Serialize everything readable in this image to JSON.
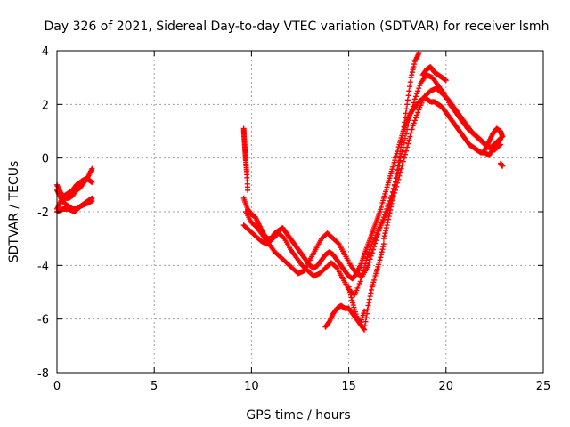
{
  "chart_data": {
    "type": "scatter",
    "title": "Day 326 of 2021, Sidereal Day-to-day VTEC variation (SDTVAR) for receiver lsmh",
    "xlabel": "GPS time / hours",
    "ylabel": "SDTVAR / TECUs",
    "xlim": [
      0,
      25
    ],
    "ylim": [
      -8,
      4
    ],
    "xticks": [
      0,
      5,
      10,
      15,
      20,
      25
    ],
    "yticks": [
      -8,
      -6,
      -4,
      -2,
      0,
      2,
      4
    ],
    "grid": true,
    "marker": "+",
    "series": [
      {
        "name": "SDTVAR",
        "color": "#ff0000",
        "segments": [
          {
            "x": [
              0.0,
              0.2,
              0.4,
              0.6,
              0.8,
              1.0,
              1.2,
              1.4,
              1.6,
              1.8
            ],
            "y": [
              -1.0,
              -1.3,
              -1.5,
              -1.5,
              -1.4,
              -1.2,
              -1.1,
              -0.9,
              -0.7,
              -0.4
            ]
          },
          {
            "x": [
              0.0,
              0.2,
              0.4,
              0.6,
              0.8,
              1.0,
              1.2,
              1.4,
              1.6,
              1.8
            ],
            "y": [
              -1.9,
              -1.6,
              -1.4,
              -1.3,
              -1.2,
              -1.0,
              -0.9,
              -0.8,
              -0.8,
              -0.9
            ]
          },
          {
            "x": [
              0.0,
              0.2,
              0.4,
              0.6,
              0.8,
              1.0,
              1.2,
              1.4,
              1.6,
              1.8
            ],
            "y": [
              -1.2,
              -1.5,
              -1.7,
              -1.8,
              -1.9,
              -1.9,
              -1.8,
              -1.7,
              -1.6,
              -1.5
            ]
          },
          {
            "x": [
              0.0,
              0.3,
              0.6,
              0.9,
              1.2,
              1.5,
              1.8
            ],
            "y": [
              -2.0,
              -1.9,
              -1.9,
              -2.0,
              -1.8,
              -1.7,
              -1.6
            ]
          },
          {
            "x": [
              9.6,
              9.62,
              9.65,
              9.68,
              9.7,
              9.75,
              9.8
            ],
            "y": [
              1.1,
              0.8,
              0.5,
              0.2,
              -0.1,
              -0.5,
              -1.2
            ]
          },
          {
            "x": [
              9.6,
              9.8,
              10.0,
              10.2,
              10.4,
              10.6,
              10.8,
              11.0,
              11.2,
              11.4,
              11.6,
              11.8,
              12.0,
              12.2,
              12.4,
              12.6,
              12.8,
              13.0,
              13.2,
              13.4,
              13.6,
              13.8,
              14.0,
              14.2,
              14.4,
              14.6,
              14.8,
              15.0,
              15.2,
              15.4,
              15.6,
              15.8,
              16.0,
              16.2,
              16.4,
              16.6,
              16.8,
              17.0,
              17.2,
              17.4,
              17.6,
              17.8,
              18.0,
              18.2,
              18.4,
              18.6,
              18.8,
              19.0,
              19.2,
              19.4,
              19.6,
              19.8,
              20.0,
              20.2,
              20.4,
              20.6,
              20.8,
              21.0,
              21.2,
              21.4,
              21.6,
              21.8,
              22.0,
              22.2,
              22.4,
              22.6,
              22.8
            ],
            "y": [
              -1.5,
              -1.9,
              -2.1,
              -2.2,
              -2.5,
              -2.8,
              -3.0,
              -3.0,
              -2.8,
              -2.7,
              -2.6,
              -2.8,
              -3.0,
              -3.2,
              -3.4,
              -3.6,
              -3.8,
              -4.0,
              -4.1,
              -4.0,
              -3.8,
              -3.6,
              -3.5,
              -3.6,
              -3.8,
              -4.0,
              -4.2,
              -4.4,
              -4.5,
              -4.3,
              -4.0,
              -3.6,
              -3.2,
              -2.8,
              -2.4,
              -2.0,
              -1.5,
              -1.0,
              -0.5,
              0.0,
              0.5,
              1.0,
              1.4,
              1.7,
              1.9,
              2.1,
              2.2,
              2.2,
              2.1,
              2.1,
              2.0,
              1.9,
              1.7,
              1.5,
              1.3,
              1.1,
              0.9,
              0.7,
              0.5,
              0.4,
              0.3,
              0.2,
              0.2,
              0.1,
              0.3,
              0.5,
              0.7
            ]
          },
          {
            "x": [
              9.6,
              9.9,
              10.2,
              10.5,
              10.8,
              11.1,
              11.4,
              11.7,
              12.0,
              12.3,
              12.6,
              12.9,
              13.2,
              13.5,
              13.8,
              14.1,
              14.4,
              14.7,
              15.0,
              15.3,
              15.6,
              15.9,
              16.2,
              16.5,
              16.8,
              17.1,
              17.4,
              17.7,
              18.0,
              18.3,
              18.6,
              18.9,
              19.2,
              19.5,
              19.8,
              20.1,
              20.4,
              20.7,
              21.0,
              21.3,
              21.6,
              21.9,
              22.2,
              22.5,
              22.8
            ],
            "y": [
              -2.5,
              -2.7,
              -2.9,
              -3.1,
              -3.2,
              -3.0,
              -2.8,
              -3.0,
              -3.4,
              -3.7,
              -4.0,
              -4.2,
              -4.4,
              -4.3,
              -4.1,
              -3.9,
              -4.1,
              -4.5,
              -4.9,
              -5.1,
              -4.6,
              -3.8,
              -3.2,
              -2.7,
              -2.3,
              -1.8,
              -1.2,
              -0.4,
              0.4,
              1.2,
              1.8,
              2.3,
              2.5,
              2.6,
              2.4,
              2.2,
              1.9,
              1.6,
              1.3,
              1.0,
              0.8,
              0.6,
              0.4,
              0.3,
              0.5
            ]
          },
          {
            "x": [
              9.7,
              10.0,
              10.3,
              10.6,
              10.9,
              11.2,
              11.5,
              11.8,
              12.1,
              12.4,
              12.7,
              13.0,
              13.3,
              13.6,
              13.9,
              14.2,
              14.5,
              14.8,
              15.1,
              15.4,
              15.7,
              16.0,
              16.3,
              16.6,
              16.9,
              17.2,
              17.5,
              17.8,
              18.1,
              18.4,
              18.7,
              19.0,
              19.3,
              19.6,
              19.9,
              20.2,
              20.5,
              20.8,
              21.1,
              21.4,
              21.7,
              22.0,
              22.3,
              22.6,
              22.9
            ],
            "y": [
              -2.0,
              -2.4,
              -2.6,
              -2.9,
              -3.2,
              -3.5,
              -3.7,
              -3.9,
              -4.1,
              -4.3,
              -4.2,
              -3.8,
              -3.4,
              -3.0,
              -2.8,
              -3.0,
              -3.2,
              -3.6,
              -4.0,
              -4.3,
              -4.4,
              -4.0,
              -3.3,
              -2.6,
              -2.0,
              -1.4,
              -0.6,
              0.4,
              1.4,
              2.2,
              2.8,
              3.1,
              3.0,
              2.7,
              2.4,
              2.0,
              1.7,
              1.4,
              1.1,
              0.9,
              0.7,
              0.5,
              0.4,
              0.6,
              0.8
            ]
          },
          {
            "x": [
              13.8,
              14.0,
              14.2,
              14.4,
              14.6,
              14.8,
              15.0,
              15.2,
              15.4,
              15.6,
              15.8
            ],
            "y": [
              -6.3,
              -6.1,
              -5.8,
              -5.6,
              -5.5,
              -5.6,
              -5.6,
              -5.8,
              -6.0,
              -6.2,
              -5.7
            ]
          },
          {
            "x": [
              15.0,
              15.2,
              15.4,
              15.6,
              15.8,
              16.0,
              16.2,
              16.4,
              16.6,
              16.8
            ],
            "y": [
              -4.8,
              -5.4,
              -5.9,
              -6.2,
              -6.4,
              -5.5,
              -4.8,
              -4.3,
              -3.8,
              -3.2
            ]
          },
          {
            "x": [
              16.8,
              17.0,
              17.2,
              17.4,
              17.6,
              17.8,
              18.0,
              18.2,
              18.4,
              18.6
            ],
            "y": [
              -3.0,
              -2.4,
              -1.7,
              -0.9,
              0.0,
              1.0,
              2.0,
              3.0,
              3.6,
              3.9
            ]
          },
          {
            "x": [
              18.8,
              19.0,
              19.2,
              19.4,
              19.6,
              19.8,
              20.0
            ],
            "y": [
              3.1,
              3.3,
              3.4,
              3.2,
              3.1,
              3.0,
              2.9
            ]
          },
          {
            "x": [
              22.0,
              22.2,
              22.4,
              22.6,
              22.8,
              22.9
            ],
            "y": [
              0.3,
              0.6,
              0.9,
              1.1,
              1.0,
              0.8
            ]
          },
          {
            "x": [
              22.8,
              22.9
            ],
            "y": [
              -0.2,
              -0.3
            ]
          }
        ]
      }
    ]
  }
}
